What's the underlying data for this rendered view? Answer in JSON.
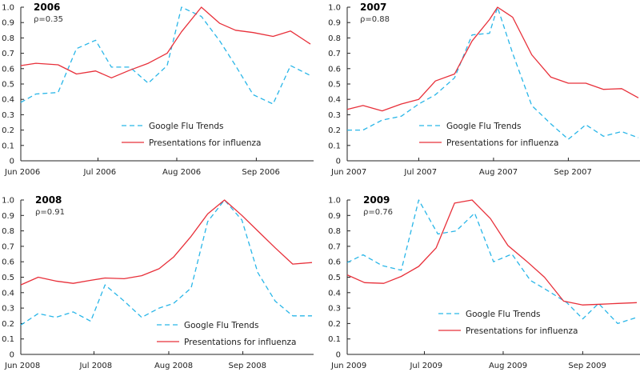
{
  "colors": {
    "google": "#29b6e8",
    "presentations": "#e8303a",
    "axis": "#222222"
  },
  "chart_data": [
    {
      "type": "line",
      "title": "2006",
      "annotation": "ρ=0.35",
      "ylim": [
        0,
        1.0
      ],
      "yticks": [
        "0",
        "0.1",
        "0.2",
        "0.3",
        "0.4",
        "0.5",
        "0.6",
        "0.7",
        "0.8",
        "0.9",
        "1.0"
      ],
      "xlim": [
        0,
        16
      ],
      "xticks": [
        {
          "label": "Jun 2006",
          "x": 0,
          "tick": false
        },
        {
          "label": "Jul 2006",
          "x": 4.24,
          "tick": true
        },
        {
          "label": "Aug 2006",
          "x": 8.57,
          "tick": true
        },
        {
          "label": "Sep 2006",
          "x": 12.94,
          "tick": true
        }
      ],
      "legend": "bottom-center",
      "series": [
        {
          "name": "Google Flu Trends",
          "style": "dashed",
          "x": [
            0,
            0.83,
            2.05,
            3.06,
            4.11,
            4.98,
            5.99,
            7.0,
            8.04,
            8.83,
            9.92,
            10.93,
            11.8,
            12.77,
            13.86,
            14.82,
            15.91
          ],
          "values": [
            0.38,
            0.435,
            0.445,
            0.73,
            0.785,
            0.61,
            0.61,
            0.505,
            0.62,
            1.0,
            0.94,
            0.78,
            0.62,
            0.43,
            0.37,
            0.62,
            0.555
          ]
        },
        {
          "name": "Presentations for influenza",
          "style": "solid",
          "x": [
            0,
            0.83,
            2.05,
            3.06,
            4.11,
            4.98,
            5.99,
            7.0,
            8.04,
            8.83,
            9.92,
            10.93,
            11.8,
            12.77,
            13.86,
            14.82,
            15.91
          ],
          "values": [
            0.62,
            0.635,
            0.625,
            0.565,
            0.585,
            0.54,
            0.59,
            0.635,
            0.7,
            0.84,
            1.0,
            0.895,
            0.85,
            0.835,
            0.81,
            0.845,
            0.76
          ]
        }
      ]
    },
    {
      "type": "line",
      "title": "2007",
      "annotation": "ρ=0.88",
      "ylim": [
        0,
        1.0
      ],
      "yticks": [
        "0",
        "0.1",
        "0.2",
        "0.3",
        "0.4",
        "0.5",
        "0.6",
        "0.7",
        "0.8",
        "0.9",
        "1.0"
      ],
      "xlim": [
        0,
        16
      ],
      "xticks": [
        {
          "label": "Jun 2007",
          "x": 0,
          "tick": false
        },
        {
          "label": "Jul 2007",
          "x": 3.93,
          "tick": true
        },
        {
          "label": "Aug 2007",
          "x": 8.04,
          "tick": true
        },
        {
          "label": "Sep 2007",
          "x": 12.15,
          "tick": true
        }
      ],
      "legend": "bottom-center",
      "series": [
        {
          "name": "Google Flu Trends",
          "style": "dashed",
          "x": [
            0,
            0.87,
            1.92,
            2.97,
            3.93,
            4.85,
            5.9,
            6.86,
            7.82,
            8.26,
            9.09,
            10.14,
            11.19,
            12.15,
            13.11,
            14.08,
            15.08,
            16
          ],
          "values": [
            0.2,
            0.2,
            0.265,
            0.29,
            0.37,
            0.43,
            0.54,
            0.82,
            0.83,
            1.0,
            0.7,
            0.36,
            0.24,
            0.14,
            0.235,
            0.16,
            0.19,
            0.15
          ]
        },
        {
          "name": "Presentations for influenza",
          "style": "solid",
          "x": [
            0,
            0.87,
            1.92,
            2.97,
            3.93,
            4.85,
            5.9,
            6.86,
            7.82,
            8.26,
            9.09,
            10.14,
            11.19,
            12.15,
            13.11,
            14.08,
            15.08,
            16
          ],
          "values": [
            0.335,
            0.36,
            0.325,
            0.37,
            0.4,
            0.52,
            0.565,
            0.78,
            0.92,
            1.0,
            0.935,
            0.69,
            0.545,
            0.505,
            0.505,
            0.465,
            0.47,
            0.41
          ]
        }
      ]
    },
    {
      "type": "line",
      "title": "2008",
      "annotation": "ρ=0.91",
      "ylim": [
        0,
        1.0
      ],
      "yticks": [
        "0",
        "0.1",
        "0.2",
        "0.3",
        "0.4",
        "0.5",
        "0.6",
        "0.7",
        "0.8",
        "0.9",
        "1.0"
      ],
      "xlim": [
        0,
        16
      ],
      "xticks": [
        {
          "label": "Jun 2008",
          "x": 0,
          "tick": false
        },
        {
          "label": "Jul 2008",
          "x": 4.02,
          "tick": true
        },
        {
          "label": "Aug 2008",
          "x": 8.13,
          "tick": true
        },
        {
          "label": "Sep 2008",
          "x": 12.2,
          "tick": true
        }
      ],
      "legend": "bottom-right",
      "series": [
        {
          "name": "Google Flu Trends",
          "style": "dashed",
          "x": [
            0,
            0.96,
            1.92,
            2.88,
            3.84,
            4.63,
            5.68,
            6.64,
            7.6,
            8.39,
            9.36,
            10.27,
            11.19,
            12.15,
            13.02,
            13.98,
            14.94,
            16
          ],
          "values": [
            0.19,
            0.265,
            0.24,
            0.275,
            0.215,
            0.45,
            0.345,
            0.24,
            0.3,
            0.33,
            0.43,
            0.86,
            1.0,
            0.87,
            0.53,
            0.345,
            0.25,
            0.25
          ]
        },
        {
          "name": "Presentations for influenza",
          "style": "solid",
          "x": [
            0,
            0.96,
            1.92,
            2.88,
            3.84,
            4.63,
            5.68,
            6.64,
            7.6,
            8.39,
            9.36,
            10.27,
            11.19,
            12.15,
            13.02,
            13.98,
            14.94,
            16
          ],
          "values": [
            0.45,
            0.5,
            0.475,
            0.46,
            0.48,
            0.495,
            0.49,
            0.51,
            0.555,
            0.63,
            0.765,
            0.91,
            1.0,
            0.9,
            0.8,
            0.69,
            0.585,
            0.595
          ]
        }
      ]
    },
    {
      "type": "line",
      "title": "2009",
      "annotation": "ρ=0.76",
      "ylim": [
        0,
        1.0
      ],
      "yticks": [
        "0",
        "0.1",
        "0.2",
        "0.3",
        "0.4",
        "0.5",
        "0.6",
        "0.7",
        "0.8",
        "0.9",
        "1.0"
      ],
      "xlim": [
        0,
        16
      ],
      "xticks": [
        {
          "label": "Jun 2009",
          "x": 0,
          "tick": false
        },
        {
          "label": "Jul 2009",
          "x": 4.24,
          "tick": true
        },
        {
          "label": "Aug 2009",
          "x": 8.57,
          "tick": true
        },
        {
          "label": "Sep 2009",
          "x": 12.94,
          "tick": true
        }
      ],
      "legend": "bottom-center",
      "series": [
        {
          "name": "Google Flu Trends",
          "style": "dashed",
          "x": [
            0,
            0.87,
            1.92,
            2.97,
            3.93,
            4.98,
            5.99,
            7.0,
            8.04,
            9.05,
            10.06,
            11.06,
            12.07,
            12.94,
            13.81,
            14.86,
            15.91
          ],
          "values": [
            0.595,
            0.645,
            0.575,
            0.545,
            1.0,
            0.78,
            0.8,
            0.915,
            0.6,
            0.65,
            0.48,
            0.41,
            0.335,
            0.23,
            0.33,
            0.2,
            0.24
          ]
        },
        {
          "name": "Presentations for influenza",
          "style": "solid",
          "x": [
            0,
            0.96,
            2.01,
            2.97,
            3.93,
            4.89,
            5.9,
            6.86,
            7.87,
            8.83,
            9.84,
            10.84,
            11.89,
            12.94,
            13.9,
            14.86,
            15.91
          ],
          "values": [
            0.515,
            0.465,
            0.46,
            0.505,
            0.57,
            0.69,
            0.98,
            1.0,
            0.88,
            0.705,
            0.605,
            0.5,
            0.345,
            0.32,
            0.325,
            0.33,
            0.335
          ]
        }
      ]
    }
  ]
}
